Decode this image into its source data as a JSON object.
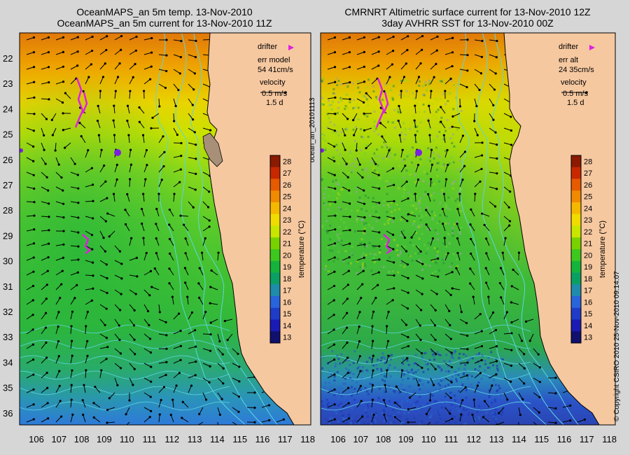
{
  "left_panel": {
    "title_line1": "OceanMAPS_an 5m temp. 13-Nov-2010",
    "title_line2": "OceanMAPS_an 5m current for 13-Nov-2010 11Z",
    "legend": {
      "drifter": "drifter",
      "err_label": "err model",
      "err_value": "54 41cm/s",
      "velocity": "velocity",
      "speed": "0.5 m/s",
      "duration": "1.5 d"
    }
  },
  "right_panel": {
    "title_line1": "CMRNRT Altimetric surface current for 13-Nov-2010 12Z",
    "title_line2": "3day AVHRR SST for 13-Nov-2010 00Z",
    "legend": {
      "drifter": "drifter",
      "err_label": "err alt",
      "err_value": "24 35cm/s",
      "velocity": "velocity",
      "speed": "0.5 m/s",
      "duration": "1.5 d"
    }
  },
  "axes": {
    "lat_ticks": [
      "22",
      "23",
      "24",
      "25",
      "26",
      "27",
      "28",
      "29",
      "30",
      "31",
      "32",
      "33",
      "34",
      "35",
      "36"
    ],
    "lon_ticks": [
      "106",
      "107",
      "108",
      "109",
      "110",
      "111",
      "112",
      "113",
      "114",
      "115",
      "116",
      "117",
      "118"
    ]
  },
  "colorbar": {
    "label": "temperature (°C)",
    "ticks": [
      "28",
      "27",
      "26",
      "25",
      "24",
      "23",
      "22",
      "21",
      "20",
      "19",
      "18",
      "17",
      "16",
      "15",
      "14",
      "13"
    ],
    "colors": [
      "#8b1a00",
      "#c82800",
      "#e65a00",
      "#f08a00",
      "#f5b800",
      "#f0dc00",
      "#c8e600",
      "#78d200",
      "#3cc81e",
      "#14b43c",
      "#0aa064",
      "#1e8caa",
      "#2864dc",
      "#1e3cc8",
      "#1a1ab4",
      "#10106e"
    ]
  },
  "side_text": {
    "center_id": "ocean_an_20101113",
    "copyright": "© Copyright CSIRO 2010   25-Nov-2010 09:14:07"
  },
  "colors": {
    "land": "#f6c8a0",
    "coast": "#000000",
    "contour": "#5fd4e0",
    "drifter": "#e020e0",
    "drifter_blob": "#7a22e0",
    "background": "#d6d6d6"
  }
}
